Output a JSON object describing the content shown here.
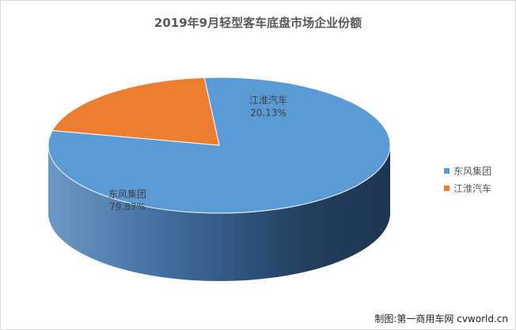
{
  "chart_data": {
    "type": "pie",
    "title": "2019年9月轻型客车底盘市场企业份额",
    "slices": [
      {
        "label": "东风集团",
        "value": 79.87,
        "value_label": "79.87%",
        "color": "#5b9bd5"
      },
      {
        "label": "江淮汽车",
        "value": 20.13,
        "value_label": "20.13%",
        "color": "#ed7d31"
      }
    ],
    "legend": {
      "position": "right"
    }
  },
  "credit": "制图:第一商用车网 cvworld.cn"
}
